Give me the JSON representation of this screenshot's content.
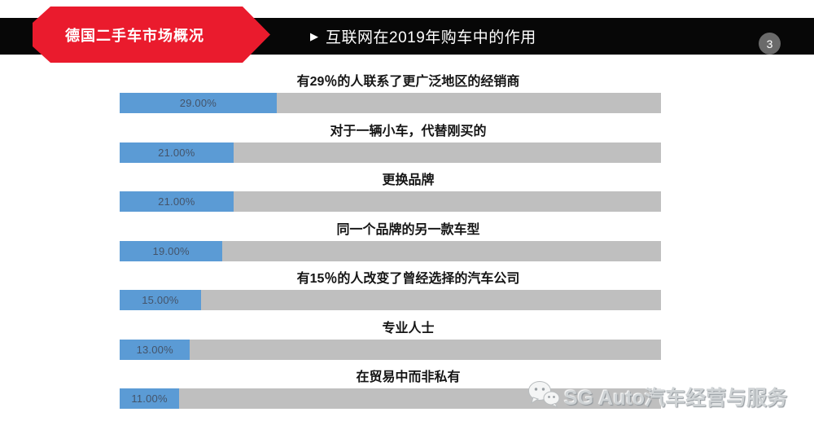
{
  "header": {
    "banner_label": "德国二手车市场概况",
    "title_marker": "▶",
    "title": "互联网在2019年购车中的作用",
    "page_number": "3",
    "banner_color": "#ea1b2d",
    "bar_color": "#070707"
  },
  "chart_data": {
    "type": "bar",
    "orientation": "horizontal",
    "title": "互联网在2019年购车中的作用",
    "xlim": [
      0,
      100
    ],
    "grid": false,
    "legend": false,
    "categories": [
      "有29％的人联系了更广泛地区的经销商",
      "对于一辆小车，代替刚买的",
      "更换品牌",
      "同一个品牌的另一款车型",
      "有15％的人改变了曾经选择的汽车公司",
      "专业人士",
      "在贸易中而非私有"
    ],
    "values": [
      29,
      21,
      21,
      19,
      15,
      13,
      11
    ],
    "value_labels": [
      "29.00%",
      "21.00%",
      "21.00%",
      "19.00%",
      "15.00%",
      "13.00%",
      "11.00%"
    ],
    "bar_fill_color": "#5b9bd5",
    "bar_track_color": "#bfbfbf",
    "value_text_color": "#44546a"
  },
  "watermark": {
    "icon": "wechat-icon",
    "text": "SG Auto汽车经营与服务"
  }
}
